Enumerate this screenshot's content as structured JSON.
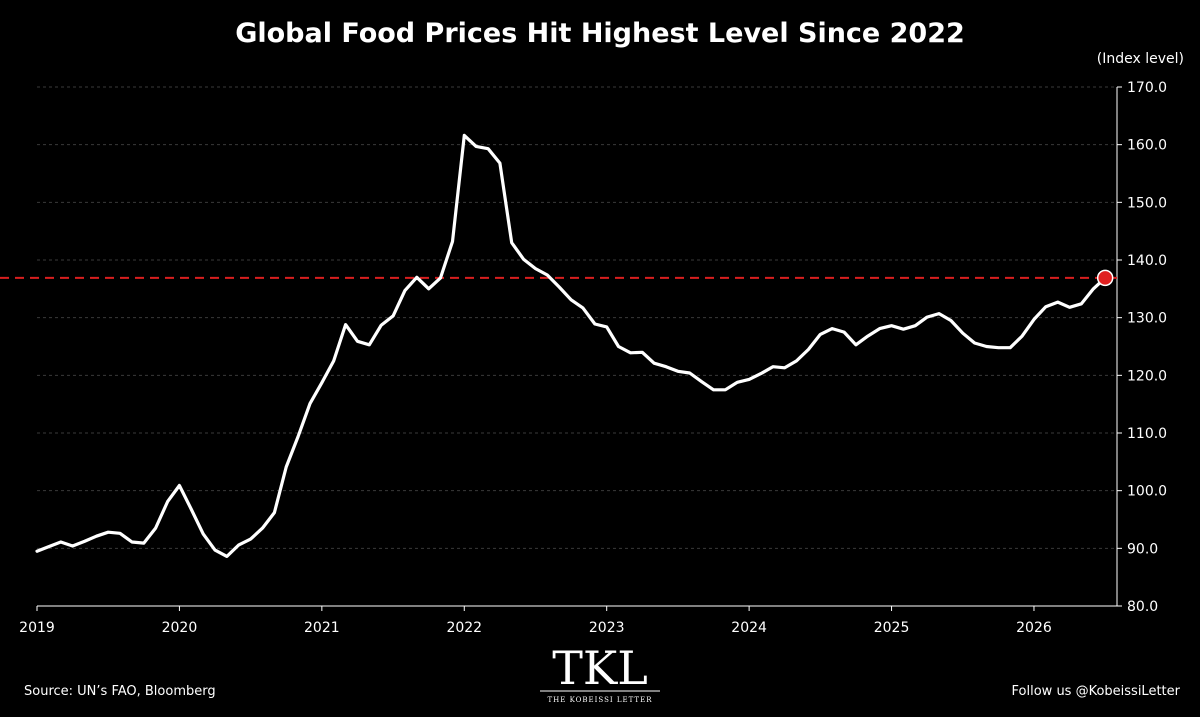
{
  "chart_data": {
    "type": "line",
    "title": "Global Food Prices Hit Highest Level Since 2022",
    "ylabel": "(Index level)",
    "xlabel": "",
    "xlim": [
      2019.0,
      2026.583
    ],
    "ylim": [
      80,
      170
    ],
    "y_ticks": [
      "80.0",
      "90.0",
      "100.0",
      "110.0",
      "120.0",
      "130.0",
      "140.0",
      "150.0",
      "160.0",
      "170.0"
    ],
    "x_ticks": [
      "2019",
      "2020",
      "2021",
      "2022",
      "2023",
      "2024",
      "2025",
      "2026"
    ],
    "grid": "horizontal dashed",
    "colors": {
      "background": "#000000",
      "line": "#ffffff",
      "reference_line": "#d91f1f",
      "marker": "#e02020",
      "grid": "#3a3a3a"
    },
    "reference_line": {
      "value": 136.9,
      "style": "dashed"
    },
    "highlight_point": {
      "x": 2026.5,
      "y": 136.9
    },
    "series": [
      {
        "x": [
          2019.0,
          2019.083,
          2019.167,
          2019.25,
          2019.333,
          2019.417,
          2019.5,
          2019.583,
          2019.667,
          2019.75,
          2019.833,
          2019.917,
          2020.0,
          2020.083,
          2020.167,
          2020.25,
          2020.333,
          2020.417,
          2020.5,
          2020.583,
          2020.667,
          2020.75,
          2020.833,
          2020.917,
          2021.0,
          2021.083,
          2021.167,
          2021.25,
          2021.333,
          2021.417,
          2021.5,
          2021.583,
          2021.667,
          2021.75,
          2021.833,
          2021.917,
          2022.0,
          2022.083,
          2022.167,
          2022.25,
          2022.333,
          2022.417,
          2022.5,
          2022.583,
          2022.667,
          2022.75,
          2022.833,
          2022.917,
          2023.0,
          2023.083,
          2023.167,
          2023.25,
          2023.333,
          2023.417,
          2023.5,
          2023.583,
          2023.667,
          2023.75,
          2023.833,
          2023.917,
          2024.0,
          2024.083,
          2024.167,
          2024.25,
          2024.333,
          2024.417,
          2024.5,
          2024.583,
          2024.667,
          2024.75,
          2024.833,
          2024.917,
          2025.0,
          2025.083,
          2025.167,
          2025.25,
          2025.333,
          2025.417,
          2025.5,
          2025.583,
          2025.667,
          2025.75,
          2025.833,
          2025.917,
          2026.0,
          2026.083,
          2026.167,
          2026.25,
          2026.333,
          2026.417,
          2026.5
        ],
        "y": [
          89.5,
          90.3,
          91.1,
          90.4,
          91.2,
          92.1,
          92.8,
          92.6,
          91.1,
          90.9,
          93.5,
          98.1,
          100.9,
          96.8,
          92.5,
          89.7,
          88.6,
          90.6,
          91.6,
          93.5,
          96.2,
          104.1,
          109.4,
          115.1,
          118.7,
          122.5,
          128.8,
          125.9,
          125.3,
          128.7,
          130.3,
          134.7,
          137.0,
          135.0,
          136.9,
          143.2,
          161.6,
          159.7,
          159.3,
          156.8,
          143.0,
          140.1,
          138.5,
          137.4,
          135.3,
          133.1,
          131.7,
          128.9,
          128.4,
          125.0,
          123.9,
          124.0,
          122.1,
          121.5,
          120.7,
          120.4,
          118.9,
          117.5,
          117.5,
          118.8,
          119.3,
          120.3,
          121.5,
          121.3,
          122.5,
          124.5,
          127.1,
          128.1,
          127.5,
          125.3,
          126.8,
          128.1,
          128.6,
          128.0,
          128.6,
          130.1,
          130.7,
          129.5,
          127.3,
          125.6,
          125.0,
          124.8,
          124.8,
          126.8,
          129.7,
          131.9,
          132.7,
          131.8,
          132.4,
          135.0,
          136.9
        ]
      }
    ]
  },
  "footer": {
    "source": "Source: UN’s FAO, Bloomberg",
    "follow": "Follow us @KobeissiLetter"
  },
  "logo": {
    "mark": "TKL",
    "tagline": "THE KOBEISSI LETTER"
  }
}
